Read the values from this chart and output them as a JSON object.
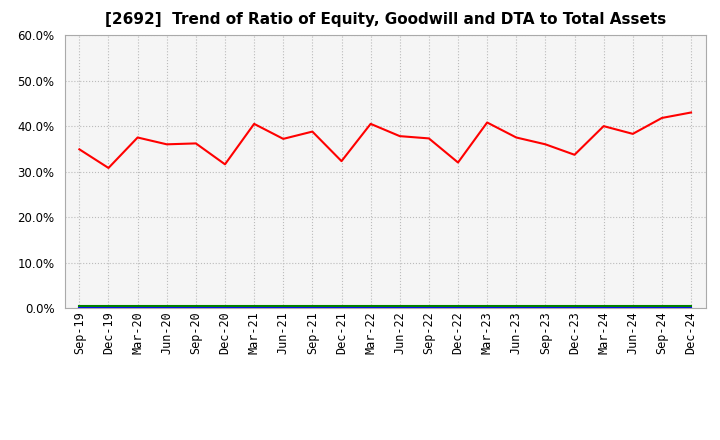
{
  "title": "[2692]  Trend of Ratio of Equity, Goodwill and DTA to Total Assets",
  "x_labels": [
    "Sep-19",
    "Dec-19",
    "Mar-20",
    "Jun-20",
    "Sep-20",
    "Dec-20",
    "Mar-21",
    "Jun-21",
    "Sep-21",
    "Dec-21",
    "Mar-22",
    "Jun-22",
    "Sep-22",
    "Dec-22",
    "Mar-23",
    "Jun-23",
    "Sep-23",
    "Dec-23",
    "Mar-24",
    "Jun-24",
    "Sep-24",
    "Dec-24"
  ],
  "equity": [
    0.349,
    0.308,
    0.375,
    0.36,
    0.362,
    0.316,
    0.405,
    0.372,
    0.388,
    0.323,
    0.405,
    0.378,
    0.373,
    0.32,
    0.408,
    0.375,
    0.36,
    0.337,
    0.4,
    0.383,
    0.418,
    0.43
  ],
  "goodwill": [
    0.0,
    0.0,
    0.0,
    0.0,
    0.0,
    0.0,
    0.0,
    0.0,
    0.0,
    0.0,
    0.0,
    0.0,
    0.0,
    0.0,
    0.0,
    0.0,
    0.0,
    0.0,
    0.0,
    0.0,
    0.0,
    0.0
  ],
  "dta": [
    0.005,
    0.005,
    0.005,
    0.005,
    0.005,
    0.005,
    0.005,
    0.005,
    0.005,
    0.005,
    0.005,
    0.005,
    0.005,
    0.005,
    0.005,
    0.005,
    0.005,
    0.005,
    0.005,
    0.005,
    0.005,
    0.005
  ],
  "equity_color": "#FF0000",
  "goodwill_color": "#0000FF",
  "dta_color": "#008000",
  "ylim": [
    0.0,
    0.6
  ],
  "yticks": [
    0.0,
    0.1,
    0.2,
    0.3,
    0.4,
    0.5,
    0.6
  ],
  "bg_color": "#FFFFFF",
  "plot_bg_color": "#F5F5F5",
  "grid_color": "#BBBBBB",
  "border_color": "#AAAAAA",
  "title_fontsize": 11,
  "tick_fontsize": 8.5,
  "legend_fontsize": 9
}
